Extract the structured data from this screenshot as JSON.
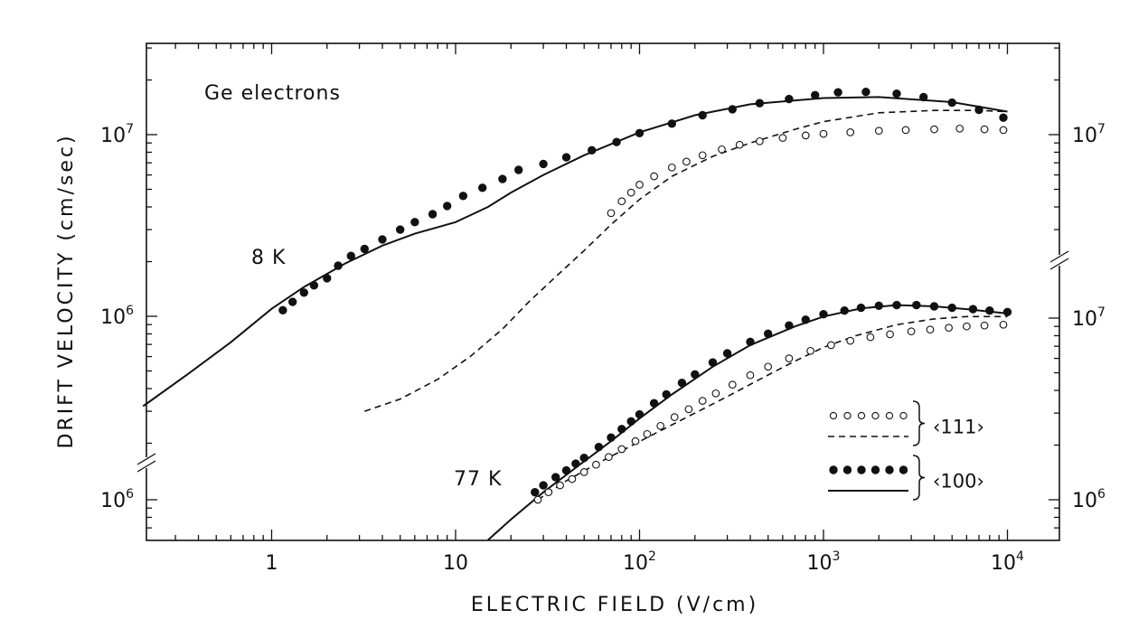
{
  "chart_data": {
    "type": "scatter",
    "title": "",
    "annotation": "Ge electrons",
    "xlabel": "ELECTRIC   FIELD (V/cm)",
    "ylabel": "DRIFT   VELOCITY (cm/sec)",
    "x_scale": "log",
    "y_scale": "log",
    "xlim": [
      0.2,
      15000
    ],
    "x_ticks": [
      {
        "value": 1,
        "base": "1",
        "exp": ""
      },
      {
        "value": 10,
        "base": "10",
        "exp": ""
      },
      {
        "value": 100,
        "base": "10",
        "exp": "2"
      },
      {
        "value": 1000,
        "base": "10",
        "exp": "3"
      },
      {
        "value": 10000,
        "base": "10",
        "exp": "4"
      }
    ],
    "grid": false,
    "panels": [
      {
        "name": "8 K",
        "label": "8 K",
        "ylim": [
          250000,
          25000000
        ],
        "y_ticks_left": [
          {
            "value": 1000000,
            "base": "10",
            "exp": "6"
          },
          {
            "value": 10000000,
            "base": "10",
            "exp": "7"
          }
        ],
        "y_ticks_right": [
          {
            "value": 10000000,
            "base": "10",
            "exp": "7"
          }
        ],
        "series": [
          {
            "name": "<100> experiment",
            "style": "filled-circles",
            "x": [
              1.15,
              1.3,
              1.5,
              1.7,
              2.0,
              2.3,
              2.7,
              3.2,
              4.0,
              5.0,
              6.0,
              7.5,
              9.0,
              11.0,
              14.0,
              18.0,
              22.0,
              30.0,
              40.0,
              55.0,
              75.0,
              100.0,
              150.0,
              220.0,
              320.0,
              450.0,
              650.0,
              900.0,
              1200.0,
              1700.0,
              2500.0,
              3500.0,
              5000.0,
              7000.0,
              9500.0
            ],
            "y": [
              1080000,
              1200000,
              1350000,
              1480000,
              1620000,
              1900000,
              2150000,
              2350000,
              2650000,
              3000000,
              3300000,
              3650000,
              4050000,
              4600000,
              5100000,
              5700000,
              6400000,
              6900000,
              7500000,
              8200000,
              9100000,
              10200000,
              11500000,
              12800000,
              13800000,
              14900000,
              15700000,
              16500000,
              17100000,
              17200000,
              16800000,
              16100000,
              15000000,
              13700000,
              12400000
            ]
          },
          {
            "name": "<111> experiment",
            "style": "open-circles",
            "x": [
              70.0,
              80.0,
              90.0,
              100.0,
              120.0,
              150.0,
              180.0,
              220.0,
              280.0,
              350.0,
              450.0,
              600.0,
              800.0,
              1000.0,
              1400.0,
              2000.0,
              2800.0,
              4000.0,
              5500.0,
              7500.0,
              9500.0
            ],
            "y": [
              3700000,
              4300000,
              4800000,
              5300000,
              5900000,
              6600000,
              7100000,
              7700000,
              8300000,
              8800000,
              9200000,
              9600000,
              9900000,
              10100000,
              10300000,
              10500000,
              10600000,
              10700000,
              10800000,
              10700000,
              10600000
            ]
          },
          {
            "name": "<100> theory",
            "style": "solid",
            "x": [
              0.2,
              0.35,
              0.6,
              1.0,
              1.5,
              2.5,
              4.0,
              6.0,
              10.0,
              15.0,
              20.0,
              30.0,
              50.0,
              100.0,
              200.0,
              400.0,
              1000.0,
              2000.0,
              5000.0,
              10000.0
            ],
            "y": [
              320000,
              480000,
              720000,
              1100000,
              1450000,
              1950000,
              2450000,
              2850000,
              3300000,
              4000000,
              4800000,
              6000000,
              7700000,
              10300000,
              12800000,
              14700000,
              15900000,
              16100000,
              15100000,
              13400000
            ]
          },
          {
            "name": "<111> theory",
            "style": "dashed",
            "x": [
              3.2,
              5.0,
              8.0,
              12.0,
              18.0,
              25.0,
              35.0,
              50.0,
              70.0,
              100.0,
              150.0,
              250.0,
              400.0,
              700.0,
              1000.0,
              2000.0,
              4000.0,
              7000.0,
              10000.0
            ],
            "y": [
              300000,
              350000,
              450000,
              600000,
              850000,
              1200000,
              1650000,
              2300000,
              3200000,
              4400000,
              5900000,
              7600000,
              9000000,
              10700000,
              11800000,
              13200000,
              13600000,
              13600000,
              13400000
            ]
          }
        ]
      },
      {
        "name": "77 K",
        "label": "77 K",
        "ylim": [
          600000,
          15000000
        ],
        "y_ticks_left": [
          {
            "value": 1000000,
            "base": "10",
            "exp": "6"
          }
        ],
        "y_ticks_right": [
          {
            "value": 1000000,
            "base": "10",
            "exp": "6"
          },
          {
            "value": 10000000,
            "base": "10",
            "exp": "7"
          }
        ],
        "series": [
          {
            "name": "<100> experiment",
            "style": "filled-circles",
            "x": [
              27.0,
              30.0,
              35.0,
              40.0,
              45.0,
              50.0,
              60.0,
              70.0,
              80.0,
              90.0,
              100.0,
              120.0,
              140.0,
              170.0,
              200.0,
              250.0,
              300.0,
              400.0,
              500.0,
              650.0,
              800.0,
              1000.0,
              1300.0,
              1600.0,
              2000.0,
              2500.0,
              3200.0,
              4000.0,
              5000.0,
              6500.0,
              8000.0,
              10000.0
            ],
            "y": [
              1100000,
              1200000,
              1330000,
              1450000,
              1580000,
              1700000,
              1950000,
              2200000,
              2450000,
              2700000,
              2950000,
              3400000,
              3800000,
              4400000,
              4900000,
              5700000,
              6400000,
              7400000,
              8200000,
              9100000,
              9800000,
              10500000,
              11000000,
              11400000,
              11700000,
              11800000,
              11800000,
              11600000,
              11400000,
              11200000,
              11000000,
              10800000
            ]
          },
          {
            "name": "<111> experiment",
            "style": "open-circles",
            "x": [
              28.0,
              32.0,
              37.0,
              43.0,
              50.0,
              58.0,
              68.0,
              80.0,
              95.0,
              110.0,
              130.0,
              155.0,
              185.0,
              220.0,
              260.0,
              320.0,
              400.0,
              500.0,
              650.0,
              850.0,
              1100.0,
              1400.0,
              1800.0,
              2300.0,
              3000.0,
              3800.0,
              4800.0,
              6000.0,
              7500.0,
              9500.0
            ],
            "y": [
              1000000,
              1100000,
              1200000,
              1300000,
              1420000,
              1560000,
              1720000,
              1900000,
              2100000,
              2300000,
              2550000,
              2850000,
              3150000,
              3500000,
              3850000,
              4300000,
              4850000,
              5400000,
              6000000,
              6600000,
              7100000,
              7500000,
              7850000,
              8150000,
              8450000,
              8650000,
              8850000,
              9000000,
              9100000,
              9200000
            ]
          },
          {
            "name": "<100> theory",
            "style": "solid",
            "x": [
              15.0,
              20.0,
              30.0,
              45.0,
              70.0,
              100.0,
              150.0,
              250.0,
              400.0,
              700.0,
              1000.0,
              1600.0,
              2500.0,
              4000.0,
              6000.0,
              10000.0
            ],
            "y": [
              600000,
              780000,
              1100000,
              1500000,
              2100000,
              2800000,
              3800000,
              5400000,
              7100000,
              9000000,
              10200000,
              11300000,
              11800000,
              11600000,
              11200000,
              10600000
            ]
          },
          {
            "name": "<111> theory",
            "style": "dashed",
            "x": [
              28.0,
              40.0,
              60.0,
              90.0,
              130.0,
              200.0,
              300.0,
              450.0,
              700.0,
              1000.0,
              1500.0,
              2500.0,
              4000.0,
              6000.0,
              10000.0
            ],
            "y": [
              1000000,
              1270000,
              1600000,
              1980000,
              2400000,
              3000000,
              3700000,
              4600000,
              5800000,
              6900000,
              8000000,
              9200000,
              9900000,
              10200000,
              10200000
            ]
          }
        ]
      }
    ],
    "legend": {
      "position": "bottom-right",
      "entries": [
        {
          "label": "‹111›",
          "markers": "open-circles",
          "line": "dashed"
        },
        {
          "label": "‹100›",
          "markers": "filled-circles",
          "line": "solid"
        }
      ]
    }
  }
}
